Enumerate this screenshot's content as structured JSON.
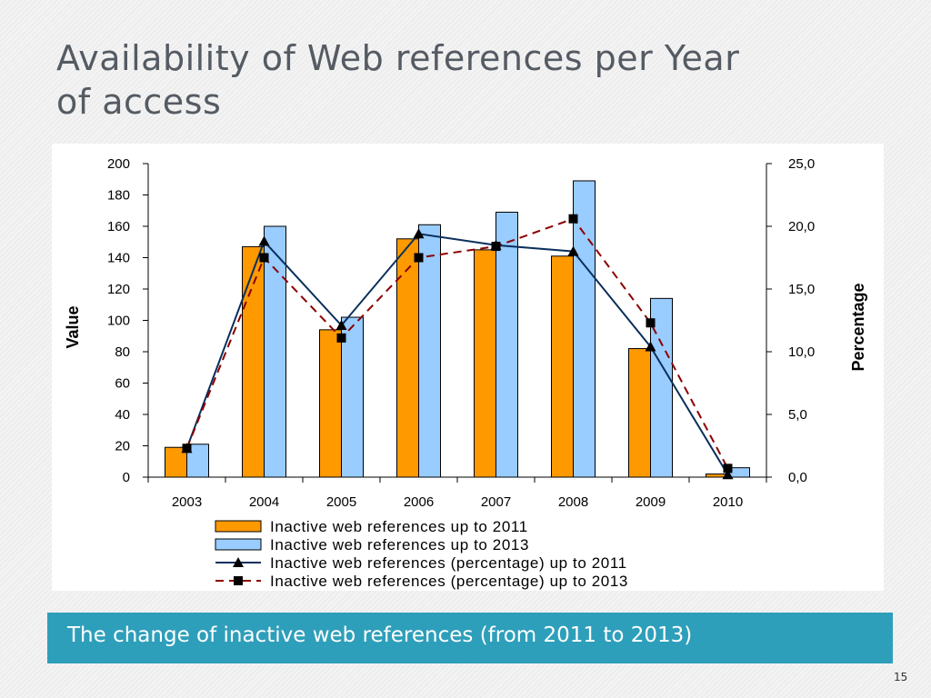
{
  "slide": {
    "title_line1": "Availability of Web references per Year",
    "title_line2": "of access",
    "caption": "The change of inactive web references (from 2011 to 2013)",
    "page_number": "15"
  },
  "colors": {
    "bar_2011": "#ff9900",
    "bar_2013": "#99ccff",
    "line_2011": "#0a2f5c",
    "line_2013": "#8b0000",
    "caption_bg": "#2e9fba"
  },
  "chart_data": {
    "type": "bar",
    "title": "",
    "xlabel": "",
    "ylabel": "Value",
    "y2label": "Percentage",
    "categories": [
      "2003",
      "2004",
      "2005",
      "2006",
      "2007",
      "2008",
      "2009",
      "2010"
    ],
    "ylim": [
      0,
      200
    ],
    "y2lim": [
      0,
      25
    ],
    "yticks": [
      "0",
      "20",
      "40",
      "60",
      "80",
      "100",
      "120",
      "140",
      "160",
      "180",
      "200"
    ],
    "y2ticks": [
      "0,0",
      "5,0",
      "10,0",
      "15,0",
      "20,0",
      "25,0"
    ],
    "grid": false,
    "legend_position": "bottom",
    "series": [
      {
        "name": "Inactive web references up to 2011",
        "type": "bar",
        "axis": "left",
        "values": [
          19,
          147,
          94,
          152,
          145,
          141,
          82,
          2
        ]
      },
      {
        "name": "Inactive web references up to 2013",
        "type": "bar",
        "axis": "left",
        "values": [
          21,
          160,
          102,
          161,
          169,
          189,
          114,
          6
        ]
      },
      {
        "name": "Inactive web references (percentage) up to 2011",
        "type": "line",
        "axis": "right",
        "marker": "triangle",
        "values": [
          2.3,
          18.8,
          12.1,
          19.4,
          18.5,
          18.0,
          10.4,
          0.2
        ]
      },
      {
        "name": "Inactive web references (percentage) up to 2013",
        "type": "line",
        "axis": "right",
        "marker": "square",
        "dash": "dashed",
        "values": [
          2.3,
          17.5,
          11.1,
          17.5,
          18.4,
          20.6,
          12.3,
          0.7
        ]
      }
    ]
  }
}
